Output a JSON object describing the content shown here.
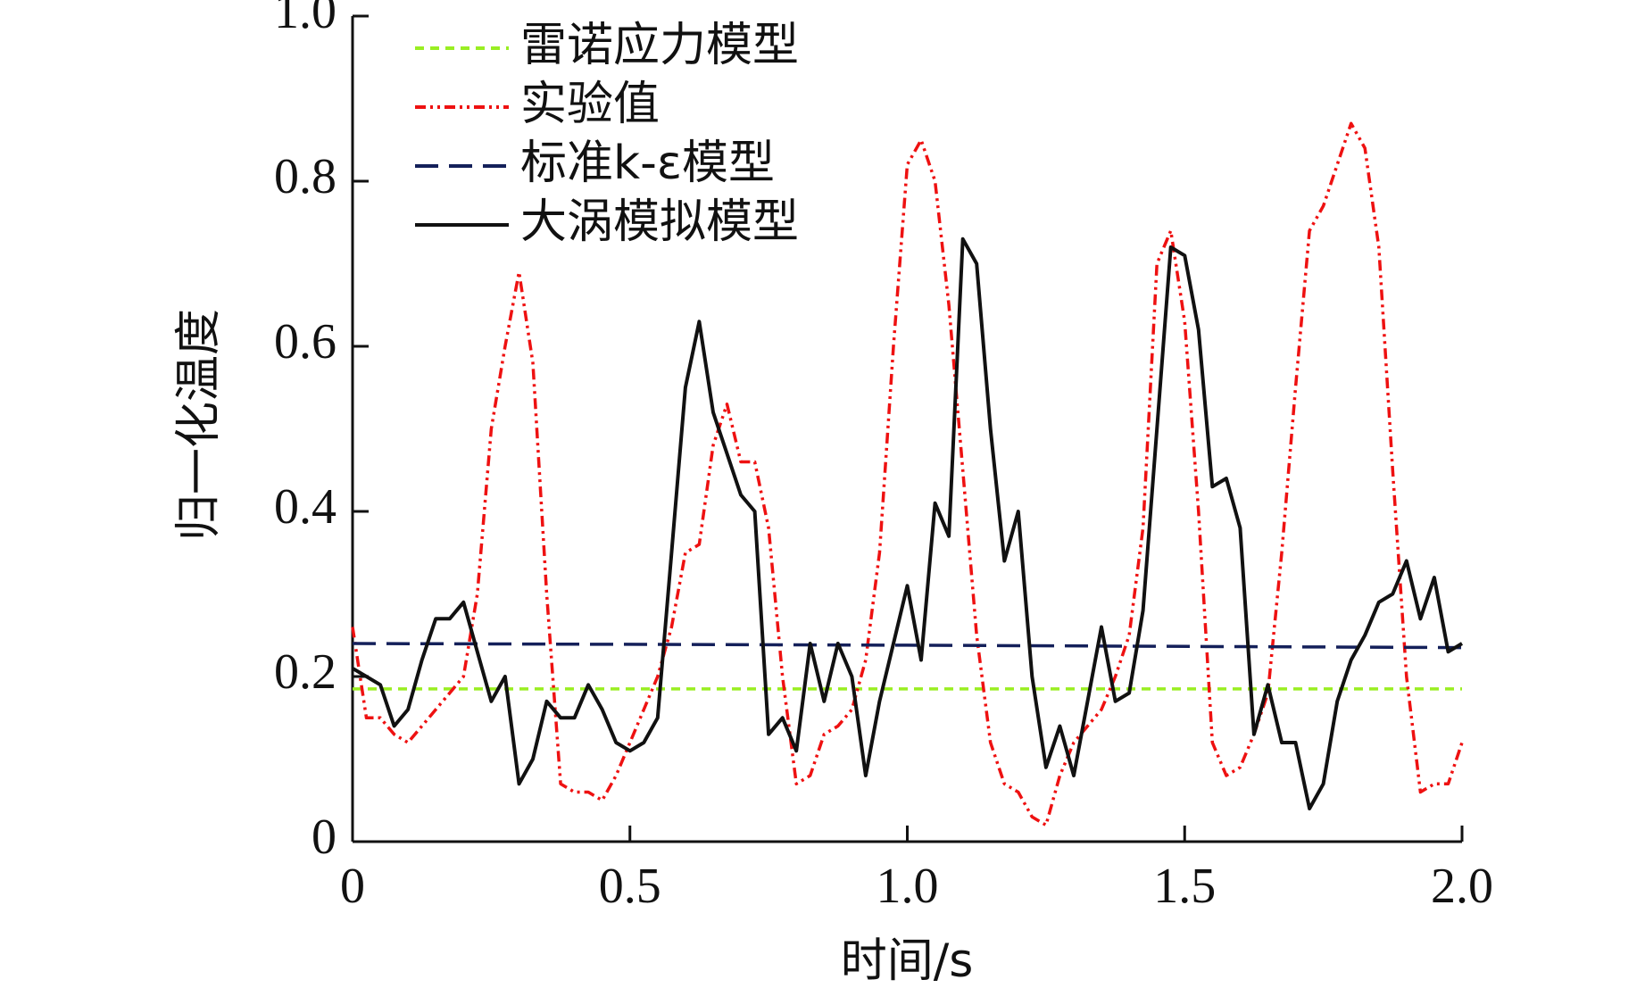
{
  "chart_data": {
    "type": "line",
    "xlabel": "时间/s",
    "ylabel": "归一化温度",
    "xlim": [
      0,
      2
    ],
    "ylim": [
      0,
      1
    ],
    "xticks": [
      0,
      0.5,
      {
        "value": 1,
        "label": "1.0"
      },
      1.5,
      {
        "value": 2,
        "label": "2.0"
      }
    ],
    "yticks": [
      0,
      0.2,
      0.4,
      0.6,
      0.8,
      {
        "value": 1,
        "label": "1.0"
      }
    ],
    "legend": "upper left",
    "series": [
      {
        "name": "雷诺应力模型",
        "color": "#99ee22",
        "linestyle": "dashed",
        "x": [
          0,
          2
        ],
        "values": [
          0.185,
          0.185
        ]
      },
      {
        "name": "实验值",
        "color": "#ee1111",
        "linestyle": "dashdotdot",
        "x": [
          0,
          0.025,
          0.05,
          0.075,
          0.1,
          0.125,
          0.15,
          0.175,
          0.2,
          0.225,
          0.25,
          0.275,
          0.3,
          0.325,
          0.35,
          0.375,
          0.4,
          0.425,
          0.45,
          0.475,
          0.5,
          0.525,
          0.55,
          0.575,
          0.6,
          0.625,
          0.65,
          0.675,
          0.7,
          0.725,
          0.75,
          0.775,
          0.8,
          0.825,
          0.85,
          0.875,
          0.9,
          0.925,
          0.95,
          0.975,
          1,
          1.025,
          1.05,
          1.075,
          1.1,
          1.125,
          1.15,
          1.175,
          1.2,
          1.225,
          1.25,
          1.275,
          1.3,
          1.325,
          1.35,
          1.375,
          1.4,
          1.425,
          1.45,
          1.475,
          1.5,
          1.525,
          1.55,
          1.575,
          1.6,
          1.625,
          1.65,
          1.675,
          1.7,
          1.725,
          1.75,
          1.775,
          1.8,
          1.825,
          1.85,
          1.875,
          1.9,
          1.925,
          1.95,
          1.975,
          2
        ],
        "values": [
          0.26,
          0.15,
          0.15,
          0.13,
          0.12,
          0.14,
          0.16,
          0.18,
          0.2,
          0.3,
          0.5,
          0.6,
          0.69,
          0.58,
          0.3,
          0.07,
          0.06,
          0.06,
          0.05,
          0.08,
          0.12,
          0.16,
          0.2,
          0.26,
          0.35,
          0.36,
          0.48,
          0.53,
          0.46,
          0.46,
          0.38,
          0.2,
          0.07,
          0.08,
          0.13,
          0.14,
          0.16,
          0.22,
          0.35,
          0.6,
          0.82,
          0.85,
          0.8,
          0.65,
          0.45,
          0.25,
          0.12,
          0.07,
          0.06,
          0.03,
          0.02,
          0.08,
          0.12,
          0.14,
          0.16,
          0.2,
          0.25,
          0.38,
          0.7,
          0.74,
          0.63,
          0.4,
          0.12,
          0.08,
          0.09,
          0.13,
          0.18,
          0.35,
          0.55,
          0.74,
          0.77,
          0.82,
          0.87,
          0.84,
          0.72,
          0.45,
          0.2,
          0.06,
          0.07,
          0.07,
          0.12
        ]
      },
      {
        "name": "标准k-ε模型",
        "color": "#14205a",
        "linestyle": "longdash",
        "x": [
          0,
          1,
          2
        ],
        "values": [
          0.24,
          0.238,
          0.235
        ]
      },
      {
        "name": "大涡模拟模型",
        "color": "#111111",
        "linestyle": "solid",
        "x": [
          0,
          0.025,
          0.05,
          0.075,
          0.1,
          0.125,
          0.15,
          0.175,
          0.2,
          0.225,
          0.25,
          0.275,
          0.3,
          0.325,
          0.35,
          0.375,
          0.4,
          0.425,
          0.45,
          0.475,
          0.5,
          0.525,
          0.55,
          0.575,
          0.6,
          0.625,
          0.65,
          0.675,
          0.7,
          0.725,
          0.75,
          0.775,
          0.8,
          0.825,
          0.85,
          0.875,
          0.9,
          0.925,
          0.95,
          0.975,
          1,
          1.025,
          1.05,
          1.075,
          1.1,
          1.125,
          1.15,
          1.175,
          1.2,
          1.225,
          1.25,
          1.275,
          1.3,
          1.325,
          1.35,
          1.375,
          1.4,
          1.425,
          1.45,
          1.475,
          1.5,
          1.525,
          1.55,
          1.575,
          1.6,
          1.625,
          1.65,
          1.675,
          1.7,
          1.725,
          1.75,
          1.775,
          1.8,
          1.825,
          1.85,
          1.875,
          1.9,
          1.925,
          1.95,
          1.975,
          2
        ],
        "values": [
          0.21,
          0.2,
          0.19,
          0.14,
          0.16,
          0.22,
          0.27,
          0.27,
          0.29,
          0.23,
          0.17,
          0.2,
          0.07,
          0.1,
          0.17,
          0.15,
          0.15,
          0.19,
          0.16,
          0.12,
          0.11,
          0.12,
          0.15,
          0.35,
          0.55,
          0.63,
          0.52,
          0.47,
          0.42,
          0.4,
          0.13,
          0.15,
          0.11,
          0.24,
          0.17,
          0.24,
          0.2,
          0.08,
          0.17,
          0.24,
          0.31,
          0.22,
          0.41,
          0.37,
          0.73,
          0.7,
          0.5,
          0.34,
          0.4,
          0.2,
          0.09,
          0.14,
          0.08,
          0.17,
          0.26,
          0.17,
          0.18,
          0.28,
          0.5,
          0.72,
          0.71,
          0.62,
          0.43,
          0.44,
          0.38,
          0.13,
          0.19,
          0.12,
          0.12,
          0.04,
          0.07,
          0.17,
          0.22,
          0.25,
          0.29,
          0.3,
          0.34,
          0.27,
          0.32,
          0.23,
          0.24
        ]
      }
    ]
  }
}
